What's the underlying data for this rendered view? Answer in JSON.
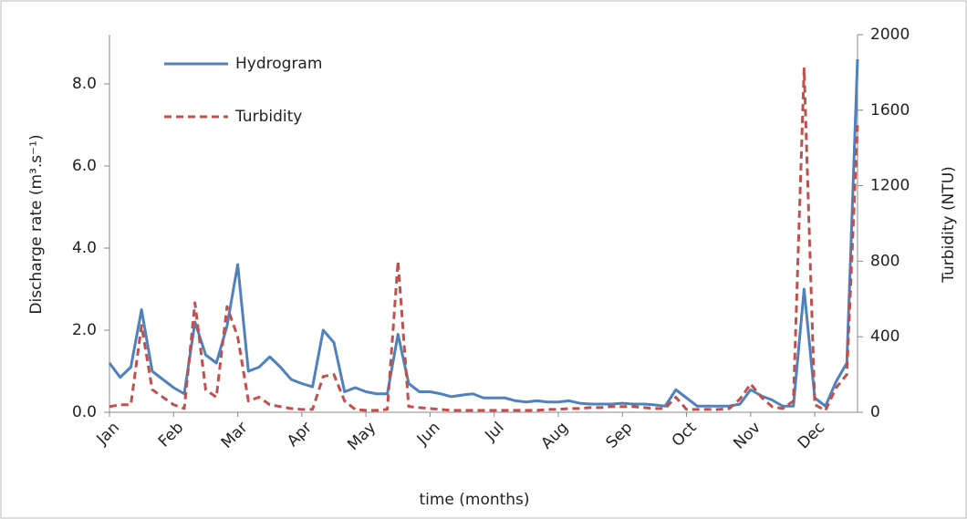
{
  "chart_data": {
    "type": "line",
    "x_label": "time (months)",
    "y_label": "Discharge rate (m³.s⁻¹)",
    "y2_label": "Turbidity (NTU)",
    "categories": [
      "Jan",
      null,
      null,
      null,
      null,
      null,
      "Feb",
      null,
      null,
      null,
      null,
      null,
      "Mar",
      null,
      null,
      null,
      null,
      null,
      "Apr",
      null,
      null,
      null,
      null,
      null,
      "May",
      null,
      null,
      null,
      null,
      null,
      "Jun",
      null,
      null,
      null,
      null,
      null,
      "Jul",
      null,
      null,
      null,
      null,
      null,
      "Aug",
      null,
      null,
      null,
      null,
      null,
      "Sep",
      null,
      null,
      null,
      null,
      null,
      "Oct",
      null,
      null,
      null,
      null,
      null,
      "Nov",
      null,
      null,
      null,
      null,
      null,
      "Dec",
      null,
      null,
      null,
      null
    ],
    "ylim": [
      0,
      9.2
    ],
    "yticks": [
      {
        "value": 0,
        "label": "0.0"
      },
      {
        "value": 2,
        "label": "2.0"
      },
      {
        "value": 4,
        "label": "4.0"
      },
      {
        "value": 6,
        "label": "6.0"
      },
      {
        "value": 8,
        "label": "8.0"
      }
    ],
    "y2lim": [
      0,
      2000
    ],
    "y2ticks": [
      0,
      400,
      800,
      1200,
      1600,
      2000
    ],
    "legend": "upper left",
    "series": [
      {
        "name": "Hydrogram",
        "color": "#4f81bd",
        "dash": false,
        "values": [
          1.2,
          0.85,
          1.1,
          2.5,
          1.0,
          0.8,
          0.6,
          0.45,
          2.2,
          1.4,
          1.2,
          2.1,
          3.6,
          1.0,
          1.1,
          1.35,
          1.1,
          0.8,
          0.7,
          0.62,
          2.0,
          1.7,
          0.5,
          0.6,
          0.5,
          0.45,
          0.45,
          1.9,
          0.7,
          0.5,
          0.5,
          0.45,
          0.38,
          0.42,
          0.45,
          0.35,
          0.35,
          0.35,
          0.28,
          0.25,
          0.28,
          0.25,
          0.25,
          0.28,
          0.22,
          0.2,
          0.2,
          0.2,
          0.22,
          0.2,
          0.2,
          0.18,
          0.15,
          0.55,
          0.35,
          0.15,
          0.15,
          0.15,
          0.15,
          0.2,
          0.55,
          0.4,
          0.3,
          0.15,
          0.15,
          3.0,
          0.35,
          0.15,
          0.75,
          1.2,
          8.6
        ]
      },
      {
        "name": "Turbidity",
        "color": "#c0504d",
        "dash": true,
        "axis": "y2",
        "values": [
          30,
          40,
          40,
          460,
          120,
          80,
          40,
          20,
          580,
          120,
          80,
          560,
          400,
          60,
          80,
          40,
          30,
          20,
          15,
          15,
          190,
          200,
          60,
          15,
          10,
          10,
          15,
          800,
          30,
          25,
          20,
          15,
          10,
          10,
          10,
          10,
          10,
          10,
          10,
          10,
          10,
          15,
          15,
          20,
          20,
          25,
          25,
          30,
          30,
          30,
          25,
          20,
          20,
          80,
          15,
          15,
          15,
          15,
          20,
          70,
          150,
          80,
          30,
          20,
          60,
          1820,
          40,
          10,
          130,
          200,
          1520
        ]
      }
    ]
  }
}
